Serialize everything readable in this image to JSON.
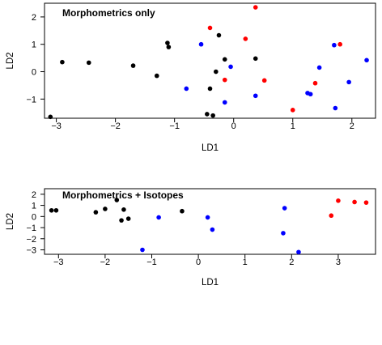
{
  "chart_data": [
    {
      "type": "scatter",
      "title": "Morphometrics only",
      "xlabel": "LD1",
      "ylabel": "LD2",
      "xlim": [
        -3.2,
        2.4
      ],
      "ylim": [
        -1.7,
        2.5
      ],
      "xticks": [
        -3,
        -2,
        -1,
        0,
        1,
        2
      ],
      "yticks": [
        -1,
        0,
        1,
        2
      ],
      "grid": false,
      "legend": "none",
      "colors": [
        "#000000",
        "#0000ff",
        "#ff0000"
      ],
      "series": [
        {
          "color": "#000000",
          "points": [
            [
              -3.1,
              -1.65
            ],
            [
              -2.9,
              0.35
            ],
            [
              -2.45,
              0.33
            ],
            [
              -1.7,
              0.22
            ],
            [
              -1.3,
              -0.15
            ],
            [
              -1.12,
              1.05
            ],
            [
              -1.1,
              0.9
            ],
            [
              -0.4,
              -0.62
            ],
            [
              -0.35,
              -1.6
            ],
            [
              -0.45,
              -1.55
            ],
            [
              -0.3,
              0.0
            ],
            [
              -0.25,
              1.33
            ],
            [
              -0.15,
              0.45
            ],
            [
              0.37,
              0.48
            ]
          ]
        },
        {
          "color": "#0000ff",
          "points": [
            [
              -0.8,
              -0.62
            ],
            [
              -0.55,
              1.0
            ],
            [
              -0.15,
              -1.12
            ],
            [
              -0.05,
              0.18
            ],
            [
              0.37,
              -0.88
            ],
            [
              1.25,
              -0.78
            ],
            [
              1.3,
              -0.82
            ],
            [
              1.45,
              0.15
            ],
            [
              1.7,
              0.97
            ],
            [
              1.72,
              -1.33
            ],
            [
              1.95,
              -0.38
            ],
            [
              2.25,
              0.42
            ]
          ]
        },
        {
          "color": "#ff0000",
          "points": [
            [
              -0.4,
              1.6
            ],
            [
              -0.15,
              -0.3
            ],
            [
              0.2,
              1.2
            ],
            [
              0.37,
              2.35
            ],
            [
              0.52,
              -0.32
            ],
            [
              1.0,
              -1.4
            ],
            [
              1.38,
              -0.42
            ],
            [
              1.8,
              1.0
            ]
          ]
        }
      ]
    },
    {
      "type": "scatter",
      "title": "Morphometrics + Isotopes",
      "xlabel": "LD1",
      "ylabel": "LD2",
      "xlim": [
        -3.3,
        3.8
      ],
      "ylim": [
        -3.4,
        2.5
      ],
      "xticks": [
        -3,
        -2,
        -1,
        0,
        1,
        2,
        3
      ],
      "yticks": [
        -3,
        -2,
        -1,
        0,
        1,
        2
      ],
      "grid": false,
      "legend": "none",
      "colors": [
        "#000000",
        "#0000ff",
        "#ff0000"
      ],
      "series": [
        {
          "color": "#000000",
          "points": [
            [
              -3.15,
              0.55
            ],
            [
              -3.05,
              0.55
            ],
            [
              -2.2,
              0.38
            ],
            [
              -2.0,
              0.68
            ],
            [
              -1.75,
              1.48
            ],
            [
              -1.65,
              -0.35
            ],
            [
              -1.6,
              0.62
            ],
            [
              -1.5,
              -0.2
            ],
            [
              -0.35,
              0.48
            ]
          ]
        },
        {
          "color": "#0000ff",
          "points": [
            [
              -1.2,
              -3.0
            ],
            [
              -0.85,
              -0.08
            ],
            [
              0.2,
              -0.08
            ],
            [
              0.3,
              -1.18
            ],
            [
              1.82,
              -1.5
            ],
            [
              1.85,
              0.75
            ],
            [
              2.15,
              -3.2
            ]
          ]
        },
        {
          "color": "#ff0000",
          "points": [
            [
              2.85,
              0.08
            ],
            [
              3.0,
              1.42
            ],
            [
              3.35,
              1.3
            ],
            [
              3.6,
              1.25
            ]
          ]
        }
      ]
    }
  ]
}
